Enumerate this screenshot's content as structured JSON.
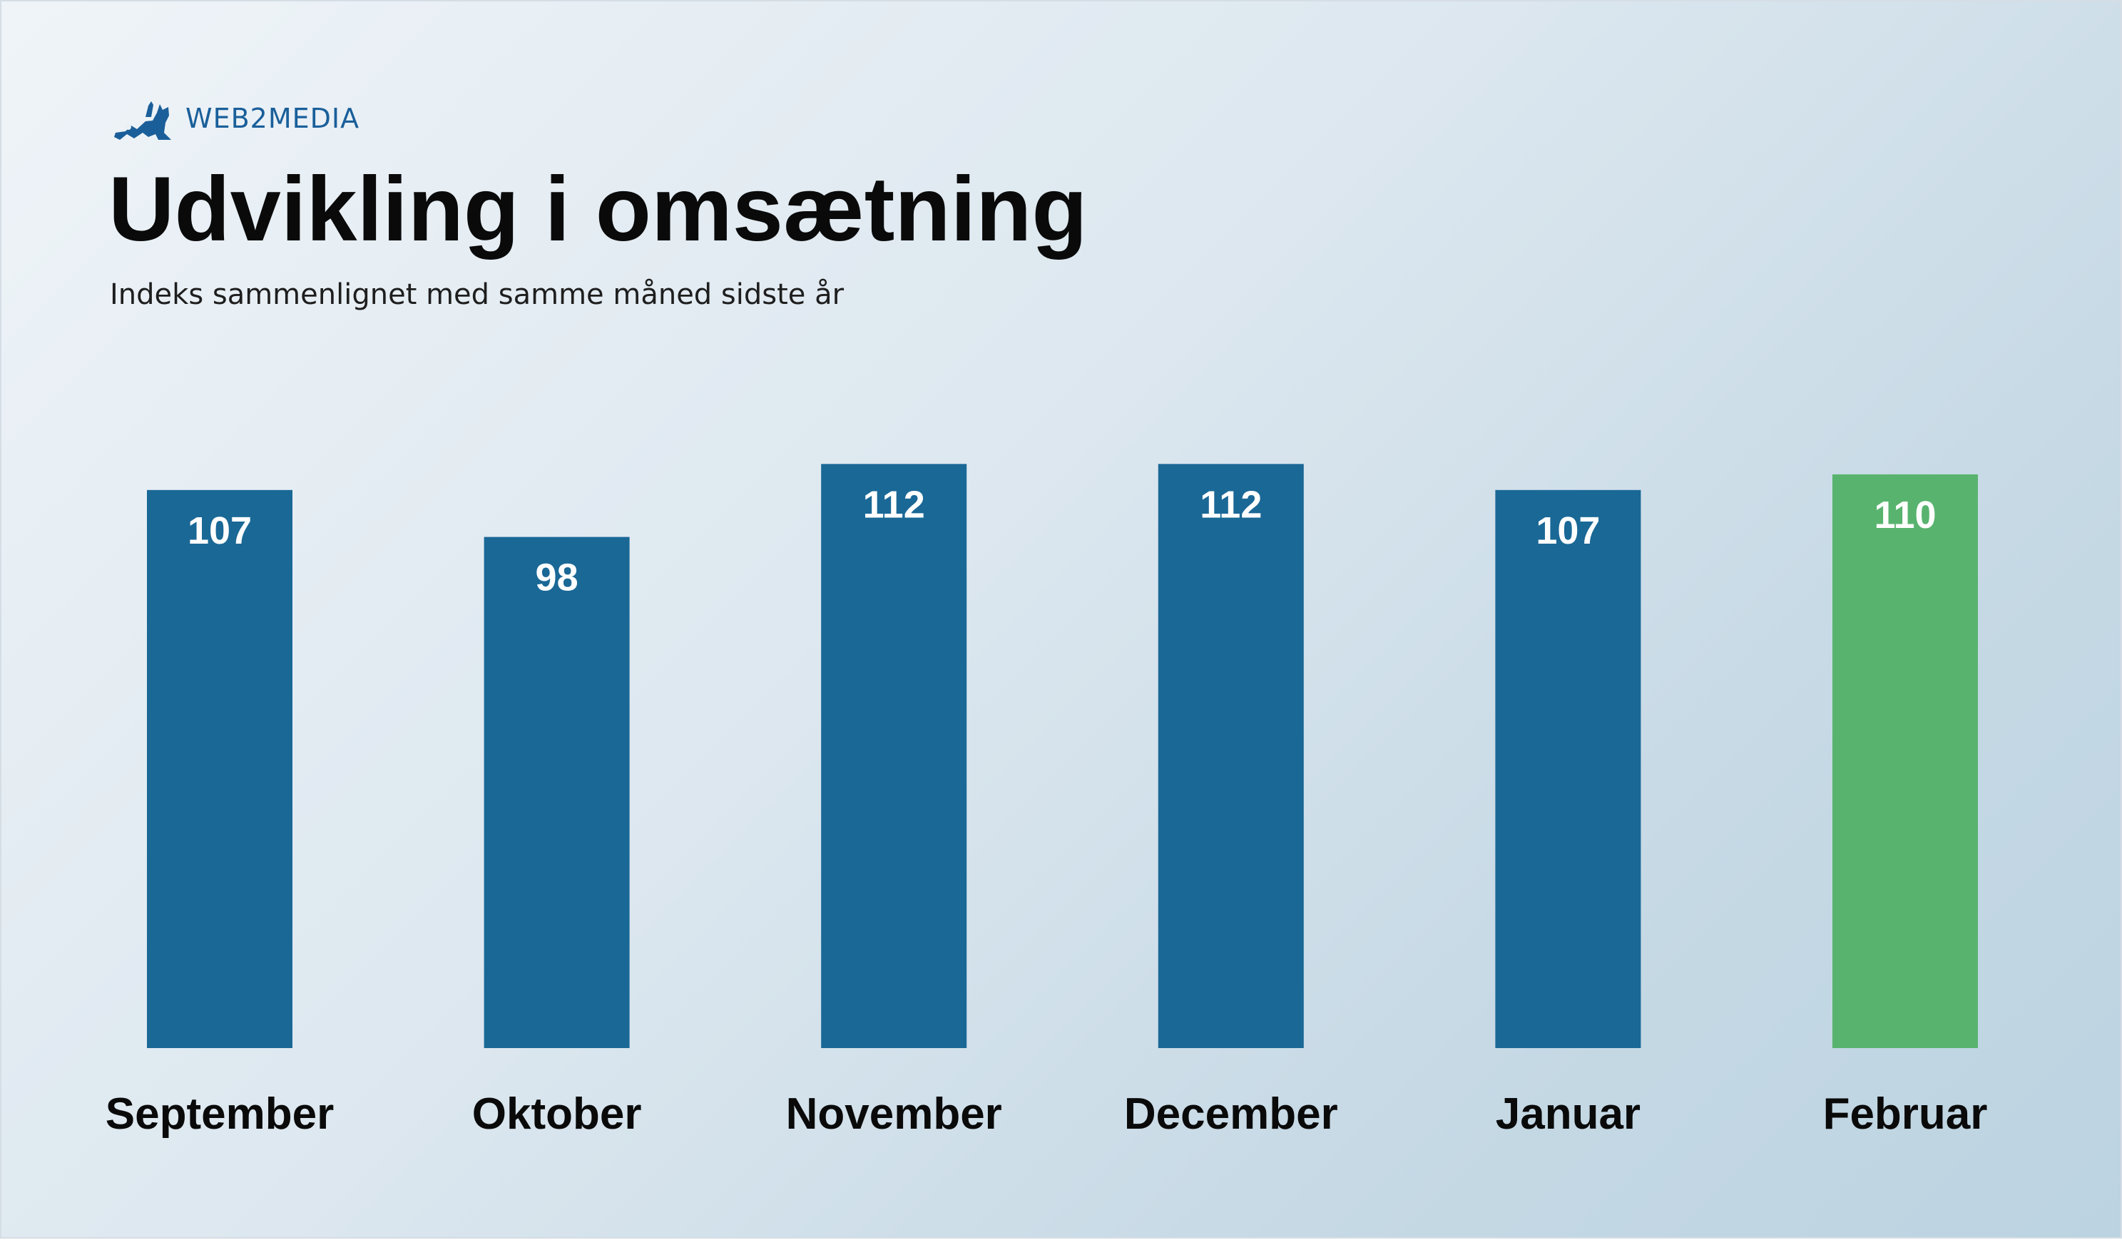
{
  "brand": {
    "name": "WEB2MEDIA",
    "logo_icon": "cat-icon",
    "color": "#1a5f9a"
  },
  "chart_data": {
    "type": "bar",
    "title": "Udvikling i omsætning",
    "subtitle": "Indeks sammenlignet med samme måned sidste år",
    "xlabel": "",
    "ylabel": "",
    "categories": [
      "September",
      "Oktober",
      "November",
      "December",
      "Januar",
      "Februar"
    ],
    "values": [
      107,
      98,
      112,
      112,
      107,
      110
    ],
    "colors": [
      "#1a6896",
      "#1a6896",
      "#1a6896",
      "#1a6896",
      "#1a6896",
      "#58b36e"
    ],
    "grid": false,
    "legend": "none"
  }
}
